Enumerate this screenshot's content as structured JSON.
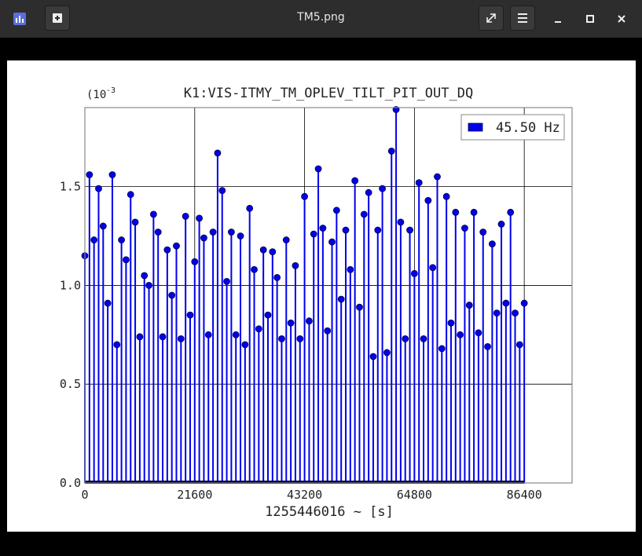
{
  "window": {
    "title": "TM5.png"
  },
  "chart_data": {
    "type": "stem",
    "title": "K1:VIS-ITMY_TM_OPLEV_TILT_PIT_OUT_DQ",
    "y_multiplier": "(10",
    "y_multiplier_exponent": "-3",
    "x_label": "1255446016 ~ [s]",
    "xlim": [
      0,
      95800
    ],
    "ylim": [
      0,
      1.9
    ],
    "xticks": [
      0,
      21600,
      43200,
      64800,
      86400
    ],
    "yticks": [
      {
        "value": 0,
        "label": "0.0"
      },
      0.5,
      {
        "value": 1,
        "label": "1.0"
      },
      1.5
    ],
    "grid": true,
    "legend": "upper right",
    "x": [
      0,
      900,
      1800,
      2700,
      3600,
      4500,
      5400,
      6300,
      7200,
      8100,
      9000,
      9900,
      10800,
      11700,
      12600,
      13500,
      14400,
      15300,
      16200,
      17100,
      18000,
      18900,
      19800,
      20700,
      21600,
      22500,
      23400,
      24300,
      25200,
      26100,
      27000,
      27900,
      28800,
      29700,
      30600,
      31500,
      32400,
      33300,
      34200,
      35100,
      36000,
      36900,
      37800,
      38700,
      39600,
      40500,
      41400,
      42300,
      43200,
      44100,
      45000,
      45900,
      46800,
      47700,
      48600,
      49500,
      50400,
      51300,
      52200,
      53100,
      54000,
      54900,
      55800,
      56700,
      57600,
      58500,
      59400,
      60300,
      61200,
      62100,
      63000,
      63900,
      64800,
      65700,
      66600,
      67500,
      68400,
      69300,
      70200,
      71100,
      72000,
      72900,
      73800,
      74700,
      75600,
      76500,
      77400,
      78300,
      79200,
      80100,
      81000,
      81900,
      82800,
      83700,
      84600,
      85500,
      86400
    ],
    "series": [
      {
        "name": "45.50 Hz",
        "color": "#0000ee",
        "values": [
          1.15,
          1.56,
          1.23,
          1.49,
          1.3,
          0.91,
          1.56,
          0.7,
          1.23,
          1.13,
          1.46,
          1.32,
          0.74,
          1.05,
          1.0,
          1.36,
          1.27,
          0.74,
          1.18,
          0.95,
          1.2,
          0.73,
          1.35,
          0.85,
          1.12,
          1.34,
          1.24,
          0.75,
          1.27,
          1.67,
          1.48,
          1.02,
          1.27,
          0.75,
          1.25,
          0.7,
          1.39,
          1.08,
          0.78,
          1.18,
          0.85,
          1.17,
          1.04,
          0.73,
          1.23,
          0.81,
          1.1,
          0.73,
          1.45,
          0.82,
          1.26,
          1.59,
          1.29,
          0.77,
          1.22,
          1.38,
          0.93,
          1.28,
          1.08,
          1.53,
          0.89,
          1.36,
          1.47,
          0.64,
          1.28,
          1.49,
          0.66,
          1.68,
          1.89,
          1.32,
          0.73,
          1.28,
          1.06,
          1.52,
          0.73,
          1.43,
          1.09,
          1.55,
          0.68,
          1.45,
          0.81,
          1.37,
          0.75,
          1.29,
          0.9,
          1.37,
          0.76,
          1.27,
          0.69,
          1.21,
          0.86,
          1.31,
          0.91,
          1.37,
          0.86,
          0.7,
          0.91
        ]
      }
    ]
  }
}
